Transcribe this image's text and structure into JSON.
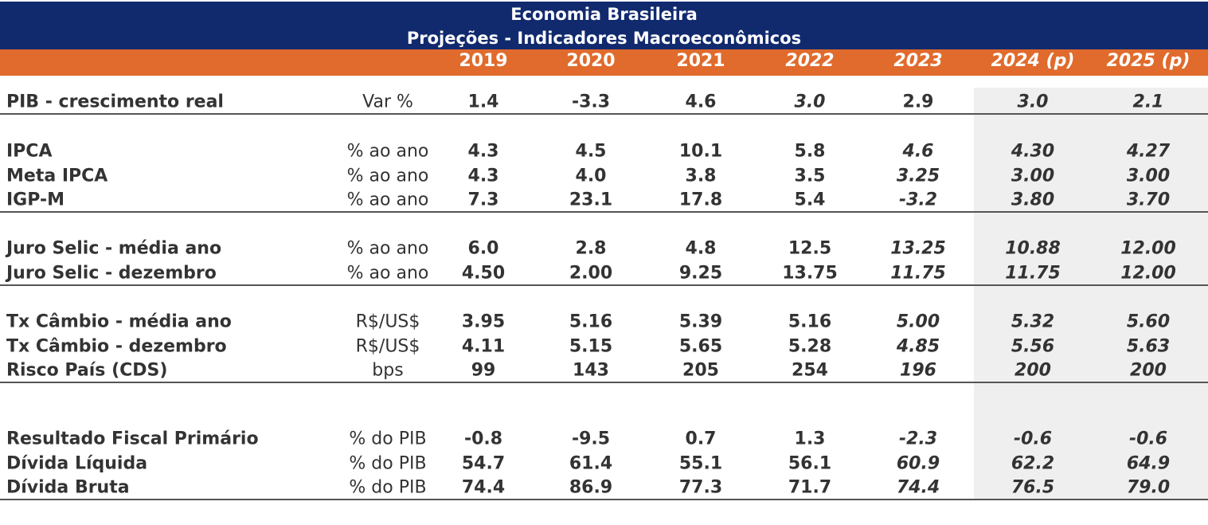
{
  "header": {
    "title": "Economia Brasileira",
    "subtitle": "Projeções - Indicadores Macroeconômicos",
    "years": [
      "2019",
      "2020",
      "2021",
      "2022",
      "2023",
      "2024 (p)",
      "2025 (p)"
    ]
  },
  "groups": [
    {
      "rows": [
        {
          "label": "PIB - crescimento real",
          "unit": "Var %",
          "values": [
            "1.4",
            "-3.3",
            "4.6",
            "3.0",
            "2.9",
            "3.0",
            "2.1"
          ]
        }
      ]
    },
    {
      "rows": [
        {
          "label": "IPCA",
          "unit": "% ao ano",
          "values": [
            "4.3",
            "4.5",
            "10.1",
            "5.8",
            "4.6",
            "4.30",
            "4.27"
          ]
        },
        {
          "label": "Meta IPCA",
          "unit": "% ao ano",
          "values": [
            "4.3",
            "4.0",
            "3.8",
            "3.5",
            "3.25",
            "3.00",
            "3.00"
          ]
        },
        {
          "label": "IGP-M",
          "unit": "% ao ano",
          "values": [
            "7.3",
            "23.1",
            "17.8",
            "5.4",
            "-3.2",
            "3.80",
            "3.70"
          ]
        }
      ]
    },
    {
      "rows": [
        {
          "label": "Juro Selic - média ano",
          "unit": "% ao ano",
          "values": [
            "6.0",
            "2.8",
            "4.8",
            "12.5",
            "13.25",
            "10.88",
            "12.00"
          ]
        },
        {
          "label": "Juro Selic - dezembro",
          "unit": "% ao ano",
          "values": [
            "4.50",
            "2.00",
            "9.25",
            "13.75",
            "11.75",
            "11.75",
            "12.00"
          ]
        }
      ]
    },
    {
      "rows": [
        {
          "label": "Tx Câmbio - média ano",
          "unit": "R$/US$",
          "values": [
            "3.95",
            "5.16",
            "5.39",
            "5.16",
            "5.00",
            "5.32",
            "5.60"
          ]
        },
        {
          "label": "Tx Câmbio - dezembro",
          "unit": "R$/US$",
          "values": [
            "4.11",
            "5.15",
            "5.65",
            "5.28",
            "4.85",
            "5.56",
            "5.63"
          ]
        },
        {
          "label": "Risco País (CDS)",
          "unit": "bps",
          "values": [
            "99",
            "143",
            "205",
            "254",
            "196",
            "200",
            "200"
          ]
        }
      ]
    },
    {
      "rows": [
        {
          "label": "Resultado Fiscal Primário",
          "unit": "% do PIB",
          "values": [
            "-0.8",
            "-9.5",
            "0.7",
            "1.3",
            "-2.3",
            "-0.6",
            "-0.6"
          ]
        },
        {
          "label": "Dívida Líquida",
          "unit": "% do PIB",
          "values": [
            "54.7",
            "61.4",
            "55.1",
            "56.1",
            "60.9",
            "62.2",
            "64.9"
          ]
        },
        {
          "label": "Dívida Bruta",
          "unit": "% do PIB",
          "values": [
            "74.4",
            "86.9",
            "77.3",
            "71.7",
            "74.4",
            "76.5",
            "79.0"
          ]
        }
      ]
    }
  ]
}
